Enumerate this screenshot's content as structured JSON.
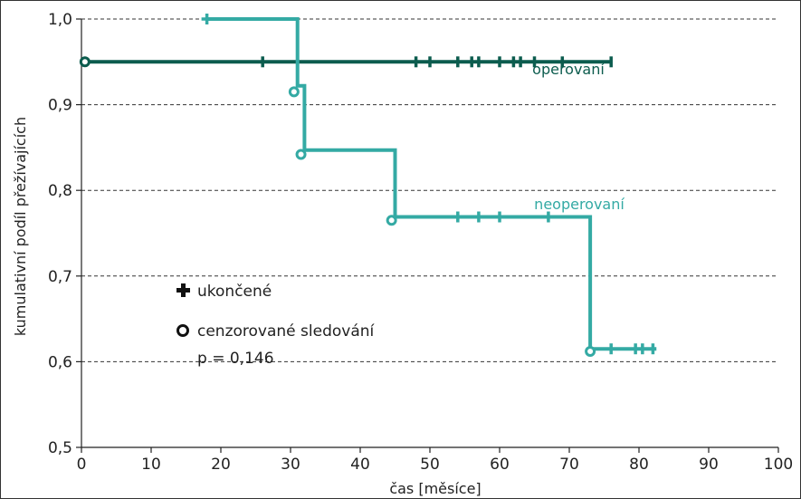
{
  "chart_data": {
    "type": "line",
    "subtype": "kaplan-meier step",
    "xlabel": "čas [měsíce]",
    "ylabel": "kumulativní podíl přežívajících",
    "xlim": [
      0,
      100
    ],
    "ylim": [
      0.5,
      1.0
    ],
    "x_ticks": [
      0,
      10,
      20,
      30,
      40,
      50,
      60,
      70,
      80,
      90,
      100
    ],
    "x_tick_labels": [
      "0",
      "10",
      "20",
      "30",
      "40",
      "50",
      "60",
      "70",
      "80",
      "90",
      "100"
    ],
    "y_ticks": [
      0.5,
      0.6,
      0.7,
      0.8,
      0.9,
      1.0
    ],
    "y_tick_labels": [
      "0,5",
      "0,6",
      "0,7",
      "0,8",
      "0,9",
      "1,0"
    ],
    "grid": "horizontal dashed",
    "series": [
      {
        "name": "operovaní",
        "color": "#0c5c4e",
        "steps": [
          [
            0.5,
            0.95
          ],
          [
            76,
            0.95
          ]
        ],
        "ended_marks_x": [
          26,
          48,
          50,
          54,
          56,
          57,
          60,
          62,
          63,
          65,
          69,
          76
        ],
        "censored_marks": [
          [
            0.5,
            0.95
          ]
        ]
      },
      {
        "name": "neoperovaní",
        "color": "#34aaa4",
        "steps": [
          [
            18,
            1.0
          ],
          [
            31,
            1.0
          ],
          [
            31,
            0.922
          ],
          [
            32,
            0.922
          ],
          [
            32,
            0.847
          ],
          [
            45,
            0.847
          ],
          [
            45,
            0.769
          ],
          [
            73,
            0.769
          ],
          [
            73,
            0.615
          ],
          [
            82.5,
            0.615
          ]
        ],
        "ended_marks": [
          [
            18,
            1.0
          ],
          [
            54,
            0.769
          ],
          [
            57,
            0.769
          ],
          [
            60,
            0.769
          ],
          [
            67,
            0.769
          ],
          [
            76,
            0.615
          ],
          [
            79.5,
            0.615
          ],
          [
            80.5,
            0.615
          ],
          [
            82,
            0.615
          ]
        ],
        "censored_marks": [
          [
            30.5,
            0.915
          ],
          [
            31.5,
            0.842
          ],
          [
            44.5,
            0.765
          ],
          [
            73,
            0.612
          ]
        ]
      }
    ],
    "legend": {
      "position": "bottom-left",
      "items": [
        {
          "symbol": "plus",
          "label": "ukončené"
        },
        {
          "symbol": "circle",
          "label": "cenzorované sledování"
        }
      ],
      "note": "p = 0,146"
    }
  }
}
